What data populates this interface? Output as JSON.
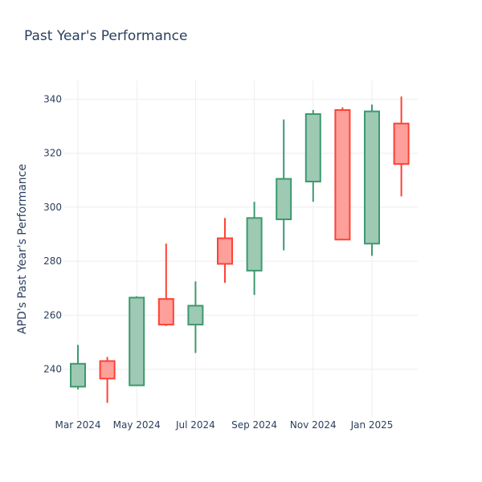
{
  "chart_data": {
    "type": "candlestick",
    "title": "Past Year's Performance",
    "ylabel": "APD's Past Year's Performance",
    "xlabel": "",
    "ylim": [
      222,
      347
    ],
    "yticks": [
      240,
      260,
      280,
      300,
      320,
      340
    ],
    "x_ticks": [
      {
        "label": "Mar 2024",
        "index": 0
      },
      {
        "label": "May 2024",
        "index": 2
      },
      {
        "label": "Jul 2024",
        "index": 4
      },
      {
        "label": "Sep 2024",
        "index": 6
      },
      {
        "label": "Nov 2024",
        "index": 8
      },
      {
        "label": "Jan 2025",
        "index": 10
      }
    ],
    "grid": true,
    "colors": {
      "increasing": "#3d9970",
      "decreasing": "#ff4136",
      "increasing_fill": "#9ec9b3",
      "decreasing_fill": "#ff9f9a"
    },
    "candles": [
      {
        "month": "2024-03",
        "open": 233.5,
        "high": 249,
        "low": 232.5,
        "close": 242
      },
      {
        "month": "2024-04",
        "open": 243,
        "high": 244.5,
        "low": 227.5,
        "close": 236.5
      },
      {
        "month": "2024-05",
        "open": 234,
        "high": 267,
        "low": 234,
        "close": 266.5
      },
      {
        "month": "2024-06",
        "open": 266,
        "high": 286.5,
        "low": 256,
        "close": 256.5
      },
      {
        "month": "2024-07",
        "open": 256.5,
        "high": 272.5,
        "low": 246,
        "close": 263.5
      },
      {
        "month": "2024-08",
        "open": 288.5,
        "high": 296,
        "low": 272,
        "close": 279
      },
      {
        "month": "2024-09",
        "open": 276.5,
        "high": 302,
        "low": 267.5,
        "close": 296
      },
      {
        "month": "2024-10",
        "open": 295.5,
        "high": 332.5,
        "low": 284,
        "close": 310.5
      },
      {
        "month": "2024-11",
        "open": 309.5,
        "high": 336,
        "low": 302,
        "close": 334.5
      },
      {
        "month": "2024-12",
        "open": 336,
        "high": 337,
        "low": 288,
        "close": 288
      },
      {
        "month": "2025-01",
        "open": 286.5,
        "high": 338,
        "low": 282,
        "close": 335.5
      },
      {
        "month": "2025-02",
        "open": 331,
        "high": 341,
        "low": 304,
        "close": 316
      }
    ]
  }
}
